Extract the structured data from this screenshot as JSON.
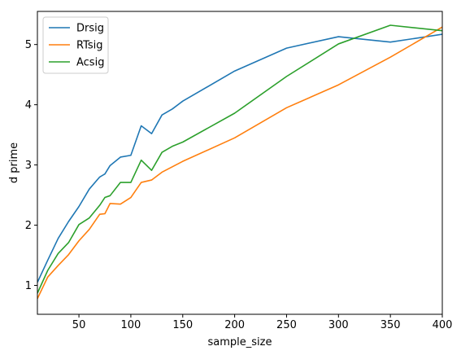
{
  "chart_data": {
    "type": "line",
    "title": "",
    "xlabel": "sample_size",
    "ylabel": "d prime",
    "xlim": [
      10,
      400
    ],
    "ylim": [
      0.52,
      5.55
    ],
    "xticks": [
      50,
      100,
      150,
      200,
      250,
      300,
      350,
      400
    ],
    "yticks": [
      1,
      2,
      3,
      4,
      5
    ],
    "grid": false,
    "legend_position": "top-left",
    "series": [
      {
        "name": "Drsig",
        "color": "#1f77b4",
        "x": [
          10,
          20,
          30,
          40,
          50,
          60,
          70,
          75,
          80,
          90,
          100,
          110,
          120,
          130,
          140,
          150,
          200,
          250,
          300,
          350,
          400
        ],
        "y": [
          1.05,
          1.42,
          1.78,
          2.06,
          2.31,
          2.6,
          2.8,
          2.85,
          2.99,
          3.13,
          3.16,
          3.65,
          3.52,
          3.83,
          3.93,
          4.06,
          4.56,
          4.94,
          5.13,
          5.04,
          5.17
        ]
      },
      {
        "name": "RTsig",
        "color": "#ff7f0e",
        "x": [
          10,
          20,
          30,
          40,
          50,
          60,
          70,
          75,
          80,
          90,
          100,
          110,
          120,
          130,
          140,
          150,
          200,
          250,
          300,
          350,
          400
        ],
        "y": [
          0.78,
          1.14,
          1.33,
          1.51,
          1.74,
          1.93,
          2.18,
          2.19,
          2.36,
          2.35,
          2.46,
          2.71,
          2.75,
          2.88,
          2.97,
          3.06,
          3.45,
          3.95,
          4.33,
          4.79,
          5.29
        ]
      },
      {
        "name": "Acsig",
        "color": "#2ca02c",
        "x": [
          10,
          20,
          30,
          40,
          50,
          60,
          70,
          75,
          80,
          90,
          100,
          110,
          120,
          130,
          140,
          150,
          200,
          250,
          300,
          350,
          400
        ],
        "y": [
          0.87,
          1.25,
          1.53,
          1.71,
          2.01,
          2.12,
          2.33,
          2.46,
          2.49,
          2.71,
          2.71,
          3.08,
          2.91,
          3.21,
          3.31,
          3.38,
          3.86,
          4.47,
          5.01,
          5.32,
          5.23
        ]
      }
    ]
  }
}
